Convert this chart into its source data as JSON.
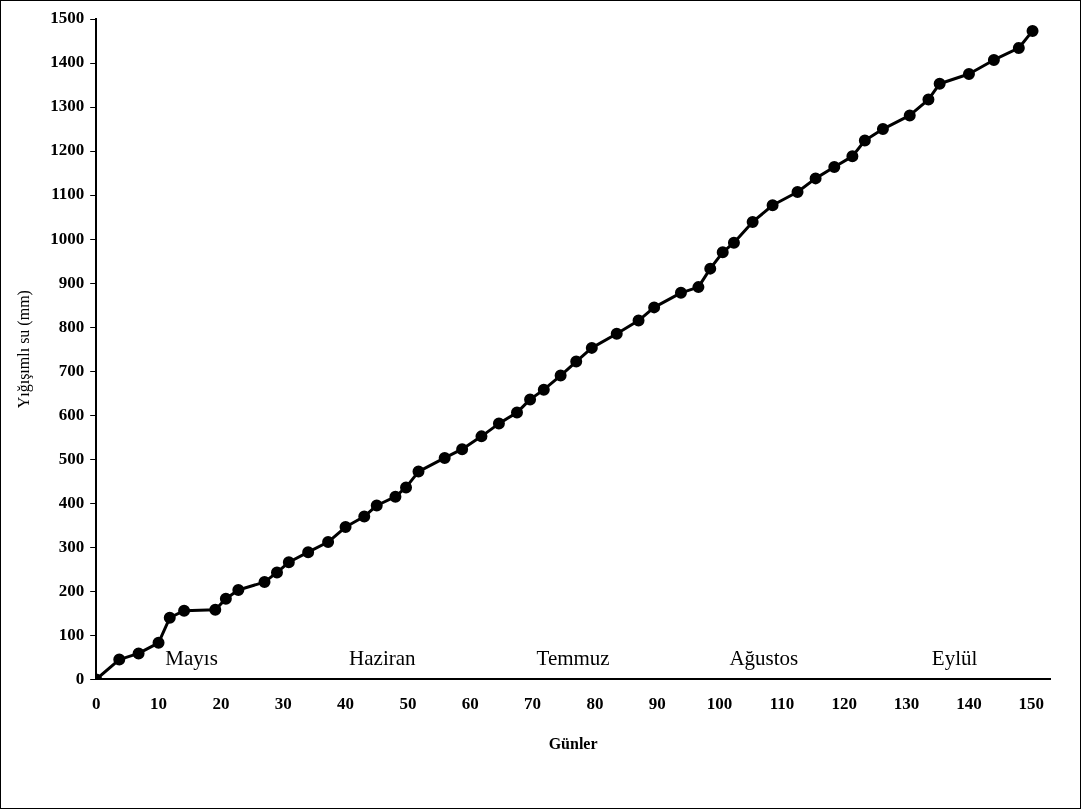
{
  "chart_data": {
    "type": "line",
    "xlabel": "Günler",
    "ylabel": "Yığışımlı su (mm)",
    "x": [
      0,
      3.7,
      6.8,
      10,
      11.8,
      14.1,
      19.1,
      20.8,
      22.8,
      27,
      29,
      30.9,
      34,
      37.2,
      40,
      43,
      45,
      48,
      49.7,
      51.7,
      55.9,
      58.7,
      61.8,
      64.6,
      67.5,
      69.6,
      71.8,
      74.5,
      77,
      79.5,
      83.5,
      87,
      89.5,
      93.8,
      96.6,
      98.5,
      100.5,
      102.3,
      105.3,
      108.5,
      112.5,
      115.4,
      118.4,
      121.3,
      123.3,
      126.2,
      130.5,
      133.5,
      135.3,
      140,
      144,
      148,
      150.2
    ],
    "series": [
      {
        "color": "#000000",
        "values": [
          0,
          45,
          59,
          83,
          140,
          156,
          158,
          183,
          203,
          221,
          243,
          266,
          289,
          312,
          346,
          370,
          395,
          415,
          436,
          472,
          503,
          523,
          552,
          581,
          606,
          636,
          658,
          690,
          722,
          753,
          785,
          815,
          845,
          878,
          891,
          933,
          970,
          992,
          1039,
          1077,
          1107,
          1138,
          1164,
          1188,
          1224,
          1250,
          1281,
          1317,
          1353,
          1375,
          1407,
          1434,
          1473
        ]
      }
    ],
    "xlim": [
      0,
      153
    ],
    "xticks": [
      0,
      10,
      20,
      30,
      40,
      50,
      60,
      70,
      80,
      90,
      100,
      110,
      120,
      130,
      140,
      150
    ],
    "ylim": [
      0,
      1500
    ],
    "yticks": [
      0,
      100,
      200,
      300,
      400,
      500,
      600,
      700,
      800,
      900,
      1000,
      1100,
      1200,
      1300,
      1400,
      1500
    ],
    "marker": "circle",
    "line_style": "solid",
    "grid": false,
    "legend": false,
    "annotations": [
      "Mayıs",
      "Haziran",
      "Temmuz",
      "Ağustos",
      "Eylül"
    ]
  }
}
